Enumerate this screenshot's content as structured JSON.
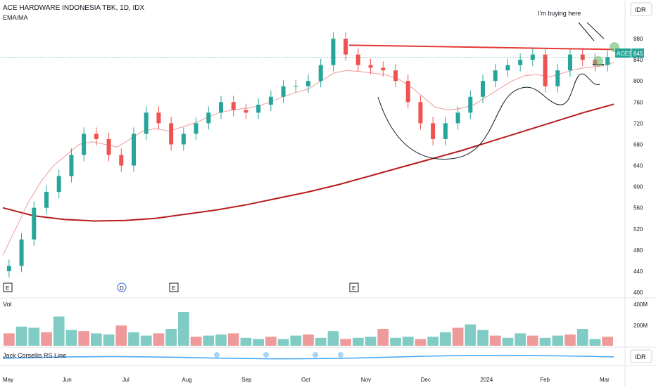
{
  "header": {
    "title": "ACE HARDWARE INDONESIA TBK, 1D, IDX",
    "indicator": "EMA/MA",
    "currency_badge": "IDR"
  },
  "annotation": {
    "note": "I'm buying here"
  },
  "price_tag": {
    "symbol": "ACES",
    "value": "845"
  },
  "volume_pane": {
    "label": "Vol",
    "ticks": [
      "400M",
      "200M"
    ]
  },
  "rs_pane": {
    "label": "Jack Corsellis RS Line",
    "badge": "IDR"
  },
  "event_markers": [
    "E",
    "D",
    "E",
    "E"
  ],
  "chart_data": {
    "type": "candlestick",
    "title": "ACE HARDWARE INDONESIA TBK, 1D, IDX",
    "x_ticks": [
      "May",
      "Jun",
      "Jul",
      "Aug",
      "Sep",
      "Oct",
      "Nov",
      "Dec",
      "2024",
      "Feb",
      "Mar"
    ],
    "y_ticks": [
      880,
      840,
      800,
      760,
      720,
      680,
      640,
      600,
      560,
      520,
      480,
      440,
      400
    ],
    "ylim": [
      400,
      900
    ],
    "last_price": 845,
    "resistance_level": 865,
    "close_series": [
      [
        "May",
        450
      ],
      [
        "May",
        500
      ],
      [
        "May",
        560
      ],
      [
        "May",
        590
      ],
      [
        "Jun",
        620
      ],
      [
        "Jun",
        660
      ],
      [
        "Jun",
        700
      ],
      [
        "Jun",
        690
      ],
      [
        "Jul",
        660
      ],
      [
        "Jul",
        640
      ],
      [
        "Jul",
        700
      ],
      [
        "Jul",
        740
      ],
      [
        "Jul",
        720
      ],
      [
        "Aug",
        680
      ],
      [
        "Aug",
        700
      ],
      [
        "Aug",
        720
      ],
      [
        "Aug",
        740
      ],
      [
        "Sep",
        760
      ],
      [
        "Sep",
        745
      ],
      [
        "Sep",
        740
      ],
      [
        "Sep",
        755
      ],
      [
        "Sep",
        770
      ],
      [
        "Oct",
        790
      ],
      [
        "Oct",
        790
      ],
      [
        "Oct",
        800
      ],
      [
        "Oct",
        830
      ],
      [
        "Oct",
        880
      ],
      [
        "Nov",
        850
      ],
      [
        "Nov",
        830
      ],
      [
        "Nov",
        825
      ],
      [
        "Nov",
        820
      ],
      [
        "Nov",
        800
      ],
      [
        "Dec",
        760
      ],
      [
        "Dec",
        720
      ],
      [
        "Dec",
        690
      ],
      [
        "Dec",
        720
      ],
      [
        "Dec",
        740
      ],
      [
        "2024",
        770
      ],
      [
        "2024",
        800
      ],
      [
        "2024",
        820
      ],
      [
        "2024",
        830
      ],
      [
        "2024",
        840
      ],
      [
        "Feb",
        850
      ],
      [
        "Feb",
        790
      ],
      [
        "Feb",
        820
      ],
      [
        "Feb",
        850
      ],
      [
        "Mar",
        840
      ],
      [
        "Mar",
        830
      ],
      [
        "Mar",
        845
      ]
    ],
    "ema20": [
      470,
      520,
      570,
      610,
      640,
      660,
      680,
      685,
      680,
      675,
      690,
      705,
      710,
      705,
      712,
      720,
      730,
      740,
      745,
      748,
      752,
      760,
      770,
      778,
      785,
      800,
      815,
      820,
      818,
      815,
      812,
      805,
      790,
      770,
      750,
      745,
      748,
      755,
      770,
      785,
      800,
      810,
      812,
      808,
      815,
      822,
      826,
      828,
      835
    ],
    "ma200": [
      560,
      545,
      538,
      535,
      536,
      540,
      548,
      556,
      566,
      578,
      590,
      604,
      620,
      636,
      652,
      668,
      686,
      704,
      722,
      740,
      756
    ],
    "volume_millions": [
      110,
      170,
      160,
      120,
      260,
      140,
      130,
      110,
      100,
      180,
      120,
      90,
      110,
      150,
      300,
      80,
      90,
      100,
      110,
      70,
      60,
      80,
      60,
      90,
      100,
      70,
      130,
      60,
      70,
      80,
      150,
      70,
      80,
      60,
      80,
      120,
      160,
      190,
      140,
      90,
      70,
      110,
      90,
      70,
      90,
      100,
      150,
      60,
      80
    ],
    "volume_ylim": [
      0,
      400
    ]
  }
}
